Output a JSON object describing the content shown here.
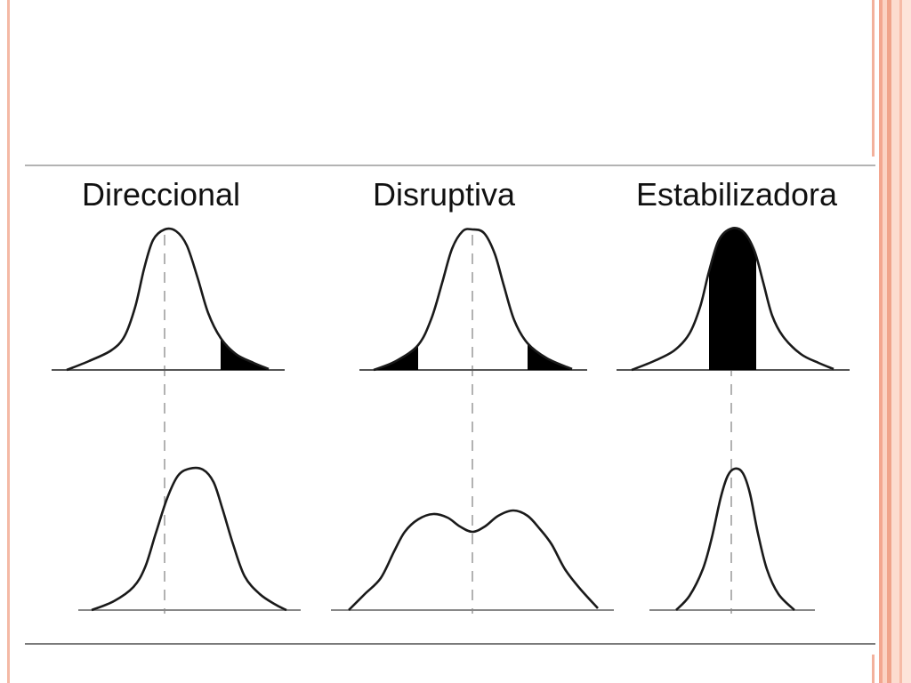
{
  "slide": {
    "panels": [
      {
        "title": "Direccional"
      },
      {
        "title": "Disruptiva"
      },
      {
        "title": "Estabilizadora"
      }
    ]
  },
  "colors": {
    "frame_accent": "#f3a68f",
    "rule": "#8c8c8c",
    "curve": "#1a1a1a",
    "selected_area": "#000000"
  }
}
